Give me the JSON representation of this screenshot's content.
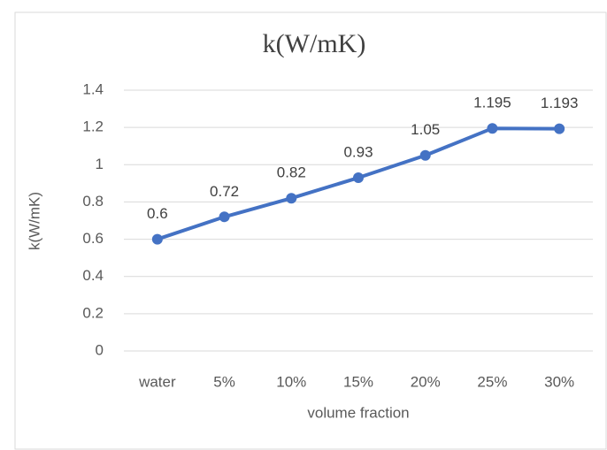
{
  "chart_data": {
    "type": "line",
    "title": "k(W/mK)",
    "x_label": "volume fraction",
    "y_label": "k(W/mK)",
    "categories": [
      "water",
      "5%",
      "10%",
      "15%",
      "20%",
      "25%",
      "30%"
    ],
    "series": [
      {
        "name": "k(W/mK)",
        "color": "#4472c4",
        "values": [
          0.6,
          0.72,
          0.82,
          0.93,
          1.05,
          1.195,
          1.193
        ]
      }
    ],
    "ylim": [
      0,
      1.4
    ],
    "yticks": [
      0,
      0.2,
      0.4,
      0.6,
      0.8,
      1,
      1.2,
      1.4
    ],
    "grid": true,
    "data_labels": true
  }
}
